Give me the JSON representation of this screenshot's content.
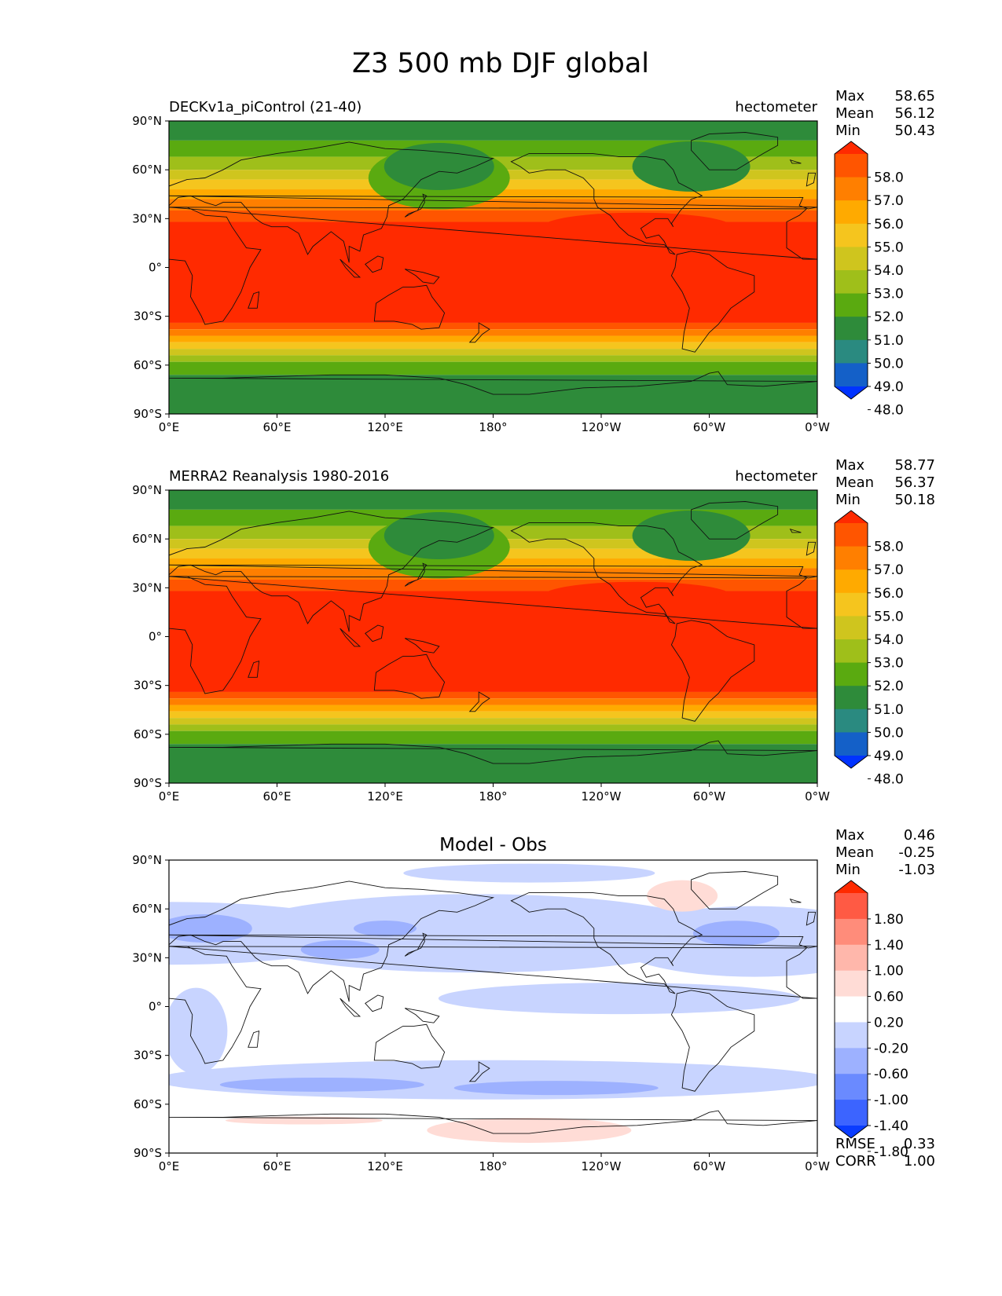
{
  "figure": {
    "title": "Z3 500 mb DJF global"
  },
  "axes": {
    "lon_ticks": [
      "0°E",
      "60°E",
      "120°E",
      "180°",
      "120°W",
      "60°W",
      "0°W"
    ],
    "lat_ticks": [
      "90°N",
      "60°N",
      "30°N",
      "0°",
      "30°S",
      "60°S",
      "90°S"
    ]
  },
  "panels": [
    {
      "id": "test",
      "left_title": "DECKv1a_piControl (21-40)",
      "center_title": "",
      "right_title": "hectometer",
      "stats": [
        {
          "label": "Max",
          "value": "58.65"
        },
        {
          "label": "Mean",
          "value": "56.12"
        },
        {
          "label": "Min",
          "value": "50.43"
        }
      ],
      "colorbar": {
        "labels": [
          "58.0",
          "57.0",
          "56.0",
          "55.0",
          "54.0",
          "53.0",
          "52.0",
          "51.0",
          "50.0",
          "49.0",
          "48.0"
        ],
        "colors": [
          "#ff2a00",
          "#ff5500",
          "#ff7f00",
          "#ffaa00",
          "#f5c51e",
          "#cfc51e",
          "#9fbf1a",
          "#5aaa10",
          "#2e8b3a",
          "#2a8a80",
          "#1460c8",
          "#0033ff"
        ]
      }
    },
    {
      "id": "reference",
      "left_title": "MERRA2 Reanalysis 1980-2016",
      "center_title": "",
      "right_title": "hectometer",
      "stats": [
        {
          "label": "Max",
          "value": "58.77"
        },
        {
          "label": "Mean",
          "value": "56.37"
        },
        {
          "label": "Min",
          "value": "50.18"
        }
      ],
      "colorbar": {
        "labels": [
          "58.0",
          "57.0",
          "56.0",
          "55.0",
          "54.0",
          "53.0",
          "52.0",
          "51.0",
          "50.0",
          "49.0",
          "48.0"
        ],
        "colors": [
          "#ff2a00",
          "#ff5500",
          "#ff7f00",
          "#ffaa00",
          "#f5c51e",
          "#cfc51e",
          "#9fbf1a",
          "#5aaa10",
          "#2e8b3a",
          "#2a8a80",
          "#1460c8",
          "#0033ff"
        ]
      }
    },
    {
      "id": "diff",
      "left_title": "",
      "center_title": "Model - Obs",
      "right_title": "",
      "stats": [
        {
          "label": "Max",
          "value": "0.46"
        },
        {
          "label": "Mean",
          "value": "-0.25"
        },
        {
          "label": "Min",
          "value": "-1.03"
        }
      ],
      "colorbar": {
        "labels": [
          "1.80",
          "1.40",
          "1.00",
          "0.60",
          "0.20",
          "-0.20",
          "-0.60",
          "-1.00",
          "-1.40",
          "-1.80"
        ],
        "colors": [
          "#ff2a00",
          "#ff5a44",
          "#ff8c7a",
          "#ffb7ab",
          "#ffdcd6",
          "#ffffff",
          "#c8d4ff",
          "#9db1ff",
          "#6a8aff",
          "#3c64ff",
          "#0a3cff"
        ]
      },
      "metrics": [
        {
          "label": "RMSE",
          "value": "0.33"
        },
        {
          "label": "CORR",
          "value": "1.00"
        }
      ]
    }
  ]
}
